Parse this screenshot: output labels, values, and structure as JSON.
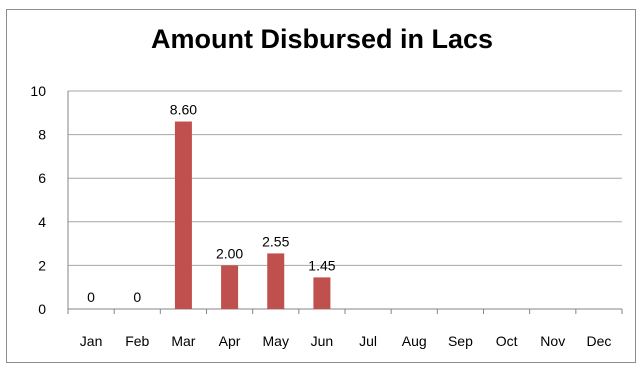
{
  "chart_data": {
    "type": "bar",
    "title": "Amount Disbursed in Lacs",
    "categories": [
      "Jan",
      "Feb",
      "Mar",
      "Apr",
      "May",
      "Jun",
      "Jul",
      "Aug",
      "Sep",
      "Oct",
      "Nov",
      "Dec"
    ],
    "values": [
      0,
      0,
      8.6,
      2.0,
      2.55,
      1.45,
      null,
      null,
      null,
      null,
      null,
      null
    ],
    "data_labels": [
      "0",
      "0",
      "8.60",
      "2.00",
      "2.55",
      "1.45",
      "",
      "",
      "",
      "",
      "",
      ""
    ],
    "ylim": [
      0,
      10
    ],
    "yticks": [
      "0",
      "2",
      "4",
      "6",
      "8",
      "10"
    ],
    "grid": true,
    "legend": "none",
    "bar_color": "#c0504d",
    "grid_color": "#a6a6a6"
  }
}
